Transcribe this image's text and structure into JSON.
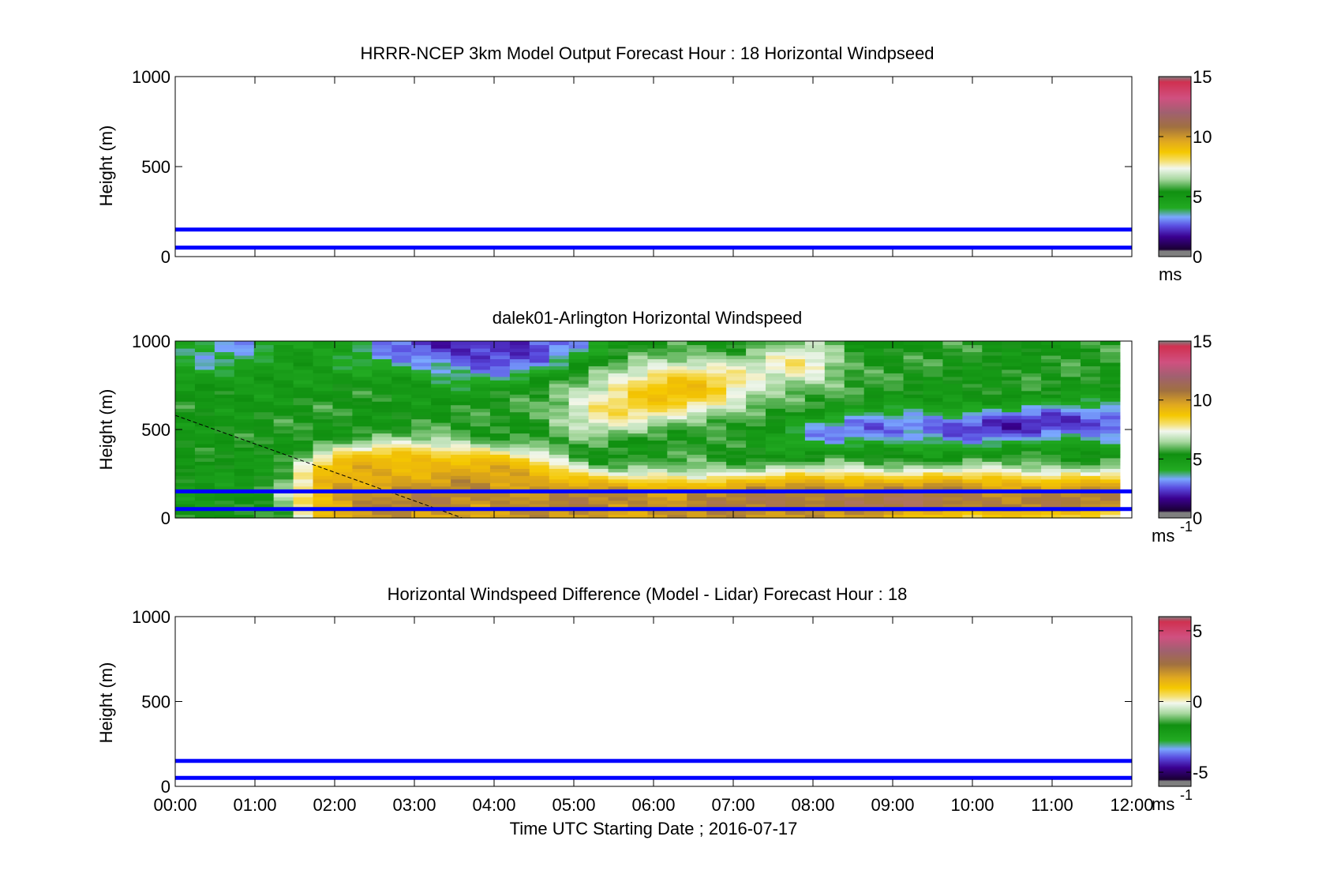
{
  "x_axis": {
    "label": "Time UTC  Starting Date ; 2016-07-17",
    "ticks": [
      "00:00",
      "01:00",
      "02:00",
      "03:00",
      "04:00",
      "05:00",
      "06:00",
      "07:00",
      "08:00",
      "09:00",
      "10:00",
      "11:00",
      "12:00"
    ]
  },
  "colors": {
    "reference_lines": "#0000ff",
    "colormap": [
      "#7f7f7f",
      "#1a0033",
      "#3a0090",
      "#5a4de0",
      "#7aa8ff",
      "#109010",
      "#22aa22",
      "#eaf3e6",
      "#f5c800",
      "#f0b800",
      "#a07040",
      "#c06080",
      "#d03050"
    ]
  },
  "chart_data": [
    {
      "type": "heatmap",
      "title": "HRRR-NCEP 3km Model Output   Forecast Hour : 18 Horizontal Windpseed",
      "ylabel": "Height (m)",
      "xlim": [
        "00:00",
        "12:00"
      ],
      "ylim": [
        0,
        1000
      ],
      "yticks": [
        "0",
        "500",
        "1000"
      ],
      "colorbar": {
        "ticks": [
          "0",
          "5",
          "10",
          "15"
        ],
        "values": [
          0,
          5,
          10,
          15
        ],
        "range": [
          0,
          15
        ],
        "unit": "ms",
        "unit_sup": ""
      },
      "reference_lines_m": [
        50,
        150
      ],
      "heatmap": "none"
    },
    {
      "type": "heatmap",
      "title": "dalek01-Arlington  Horizontal Windspeed",
      "ylabel": "Height (m)",
      "xlim": [
        "00:00",
        "12:00"
      ],
      "ylim": [
        0,
        1000
      ],
      "yticks": [
        "0",
        "500",
        "1000"
      ],
      "colorbar": {
        "ticks": [
          "0",
          "5",
          "10",
          "15"
        ],
        "values": [
          0,
          5,
          10,
          15
        ],
        "range": [
          0,
          15
        ],
        "unit": "ms",
        "unit_sup": "-1"
      },
      "reference_lines_m": [
        50,
        150
      ],
      "dashed_line": {
        "from": [
          0.0,
          580
        ],
        "to": [
          3.6,
          0
        ]
      },
      "heatmap": "lidar",
      "time_hours_end": 11.85
    },
    {
      "type": "heatmap",
      "title": "Horizontal Windspeed Difference (Model - Lidar) Forecast Hour : 18",
      "ylabel": "Height (m)",
      "xlim": [
        "00:00",
        "12:00"
      ],
      "ylim": [
        0,
        1000
      ],
      "yticks": [
        "0",
        "500",
        "1000"
      ],
      "colorbar": {
        "ticks": [
          "-5",
          "0",
          "5"
        ],
        "values": [
          -5,
          0,
          5
        ],
        "range": [
          -6,
          6
        ],
        "unit": "ms",
        "unit_sup": "-1"
      },
      "reference_lines_m": [
        50,
        150
      ],
      "heatmap": "none"
    }
  ]
}
